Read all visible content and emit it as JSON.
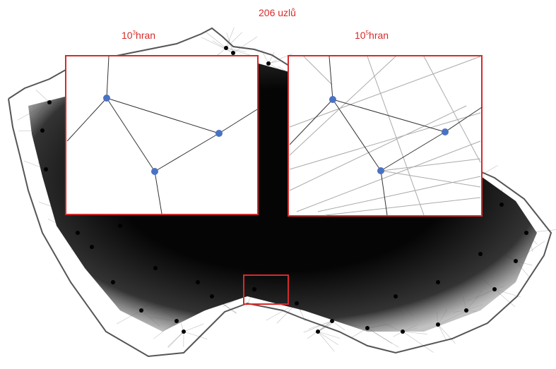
{
  "title": "206 uzlů",
  "panels": [
    {
      "base": "10",
      "exponent": "3",
      "label": "hran"
    },
    {
      "base": "10",
      "exponent": "5",
      "label": "hran"
    }
  ]
}
